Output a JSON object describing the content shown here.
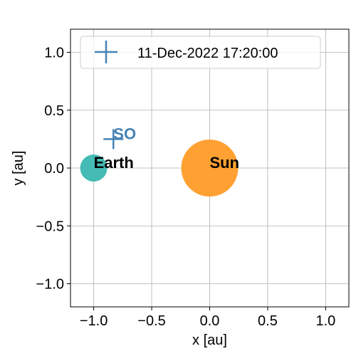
{
  "chart_data": {
    "type": "scatter",
    "xlabel": "x [au]",
    "ylabel": "y [au]",
    "xlim": [
      -1.2,
      1.2
    ],
    "ylim": [
      -1.2,
      1.2
    ],
    "xticks": [
      -1.0,
      -0.5,
      0.0,
      0.5,
      1.0
    ],
    "yticks": [
      -1.0,
      -0.5,
      0.0,
      0.5,
      1.0
    ],
    "xtick_labels": [
      "−1.0",
      "−0.5",
      "0.0",
      "0.5",
      "1.0"
    ],
    "ytick_labels": [
      "−1.0",
      "−0.5",
      "0.0",
      "0.5",
      "1.0"
    ],
    "grid": true,
    "legend": {
      "placement": "top-left",
      "entries": [
        {
          "label": "11-Dec-2022 17:20:00",
          "marker": "plus",
          "color": "#4682b4"
        }
      ]
    },
    "points": [
      {
        "label": "Sun",
        "x": 0.0,
        "y": 0.0,
        "marker": "circle",
        "color": "#ffa032",
        "label_color": "#000000"
      },
      {
        "label": "Earth",
        "x": -1.0,
        "y": 0.0,
        "marker": "circle",
        "color": "#44bbb4",
        "label_color": "#000000"
      },
      {
        "label": "SO",
        "x": -0.83,
        "y": 0.25,
        "marker": "plus",
        "color": "#4682b4",
        "label_color": "#4682b4"
      }
    ]
  }
}
